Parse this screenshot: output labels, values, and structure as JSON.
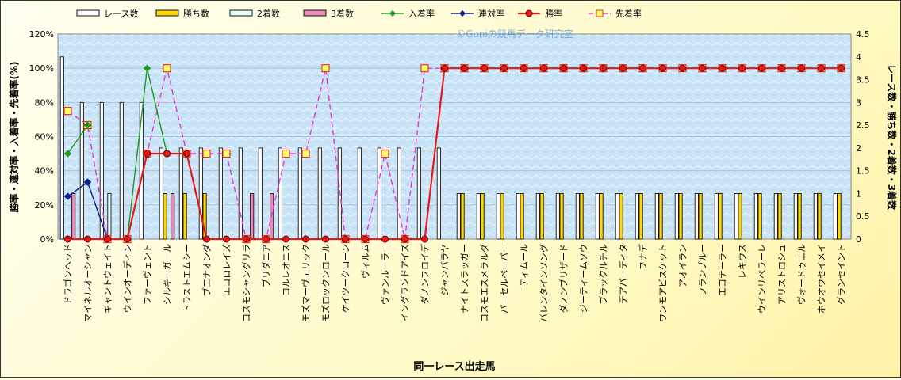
{
  "chart_data": {
    "type": "bar",
    "title": "",
    "watermark": "©Ganiの競馬データ研究室",
    "xlabel": "同一レース出走馬",
    "ylabel_left": "勝率・連対率・入着率・先着率(%)",
    "ylabel_right": "レース数・勝ち数・2着数・3着数",
    "ylim_left": [
      0,
      120
    ],
    "ylim_right": [
      0,
      4.5
    ],
    "yticks_left": [
      "0%",
      "20%",
      "40%",
      "60%",
      "80%",
      "100%",
      "120%"
    ],
    "yticks_right": [
      "0",
      "0.5",
      "1",
      "1.5",
      "2",
      "2.5",
      "3",
      "3.5",
      "4",
      "4.5"
    ],
    "legend_position": "top",
    "grid": true,
    "categories": [
      "ドラゴンヘッド",
      "マイネルオーシャン",
      "キャントウェイト",
      "ウインオーディン",
      "ファーヴェント",
      "シルキーガール",
      "トラストエムシー",
      "ブエナオンダ",
      "エコロレイズ",
      "コスモシャングリラ",
      "ブリダニア",
      "コルレオニス",
      "モズマーヴェリック",
      "モズロックンロール",
      "ケイツークローン",
      "ヴィルム",
      "ヴァンルーラー",
      "イングランドアイズ",
      "ダノンフロイデ",
      "ジャンバラヤ",
      "ナイトスラッガー",
      "コスモエスメラルダ",
      "パーセルペーパー",
      "ティムール",
      "バレンタインソング",
      "ダノンブリザード",
      "ジーティームソウ",
      "ブラックルチル",
      "デアパーディタ",
      "フナデ",
      "ワンモアビスケット",
      "アオイラン",
      "フランブルー",
      "エコテーラー",
      "レキウス",
      "ウインリベラーレ",
      "アリストロシュ",
      "ヴォードゥエル",
      "ホウオウセイメイ",
      "グランセイント"
    ],
    "series": [
      {
        "name": "レース数",
        "axis": "right",
        "kind": "bar",
        "color": "#ffffff",
        "values": [
          4,
          3,
          3,
          3,
          3,
          2,
          2,
          2,
          2,
          2,
          2,
          2,
          2,
          2,
          2,
          2,
          2,
          2,
          2,
          2,
          1,
          1,
          1,
          1,
          1,
          1,
          1,
          1,
          1,
          1,
          1,
          1,
          1,
          1,
          1,
          1,
          1,
          1,
          1,
          1
        ]
      },
      {
        "name": "勝ち数",
        "axis": "right",
        "kind": "bar",
        "color": "#ffd700",
        "values": [
          0,
          0,
          0,
          0,
          0,
          1,
          1,
          1,
          0,
          0,
          0,
          0,
          0,
          0,
          0,
          0,
          0,
          0,
          0,
          0,
          1,
          1,
          1,
          1,
          1,
          1,
          1,
          1,
          1,
          1,
          1,
          1,
          1,
          1,
          1,
          1,
          1,
          1,
          1,
          1
        ]
      },
      {
        "name": "2着数",
        "axis": "right",
        "kind": "bar",
        "color": "#e0ffff",
        "values": [
          0,
          0,
          1,
          0,
          0,
          0,
          0,
          0,
          0,
          0,
          0,
          0,
          0,
          0,
          0,
          0,
          0,
          0,
          0,
          0,
          0,
          0,
          0,
          0,
          0,
          0,
          0,
          0,
          0,
          0,
          0,
          0,
          0,
          0,
          0,
          0,
          0,
          0,
          0,
          0
        ]
      },
      {
        "name": "3着数",
        "axis": "right",
        "kind": "bar",
        "color": "#ee88bb",
        "values": [
          1,
          0,
          0,
          0,
          0,
          1,
          0,
          0,
          0,
          1,
          1,
          0,
          0,
          0,
          0,
          0,
          0,
          0,
          0,
          0,
          0,
          0,
          0,
          0,
          0,
          0,
          0,
          0,
          0,
          0,
          0,
          0,
          0,
          0,
          0,
          0,
          0,
          0,
          0,
          0
        ]
      },
      {
        "name": "入着率",
        "axis": "left",
        "kind": "line",
        "color": "#229922",
        "values": [
          50,
          66.7,
          null,
          0,
          100,
          50,
          null,
          null,
          null,
          null,
          null,
          null,
          null,
          null,
          null,
          null,
          null,
          null,
          null,
          null,
          null,
          null,
          null,
          null,
          null,
          null,
          null,
          null,
          null,
          null,
          null,
          null,
          null,
          null,
          null,
          null,
          null,
          null,
          null,
          null
        ]
      },
      {
        "name": "連対率",
        "axis": "left",
        "kind": "line",
        "color": "#0a1e8c",
        "values": [
          25,
          33.3,
          0,
          0,
          null,
          null,
          null,
          null,
          null,
          null,
          null,
          null,
          null,
          null,
          null,
          null,
          null,
          null,
          null,
          null,
          null,
          null,
          null,
          null,
          null,
          null,
          null,
          null,
          null,
          null,
          null,
          null,
          null,
          null,
          null,
          null,
          null,
          null,
          null,
          null
        ]
      },
      {
        "name": "勝率",
        "axis": "left",
        "kind": "line",
        "color": "#e41a1a",
        "values": [
          0,
          0,
          0,
          0,
          50,
          50,
          50,
          0,
          0,
          0,
          0,
          0,
          0,
          0,
          0,
          0,
          0,
          0,
          0,
          100,
          100,
          100,
          100,
          100,
          100,
          100,
          100,
          100,
          100,
          100,
          100,
          100,
          100,
          100,
          100,
          100,
          100,
          100,
          100,
          100
        ]
      },
      {
        "name": "先着率",
        "axis": "left",
        "kind": "dashed-line",
        "color": "#ee33cc",
        "values": [
          75,
          66.7,
          0,
          0,
          50,
          100,
          50,
          50,
          50,
          0,
          0,
          50,
          50,
          100,
          0,
          0,
          50,
          0,
          100,
          100,
          100,
          100,
          100,
          100,
          100,
          100,
          100,
          100,
          100,
          100,
          100,
          100,
          100,
          100,
          100,
          100,
          100,
          100,
          100,
          100
        ]
      }
    ]
  }
}
